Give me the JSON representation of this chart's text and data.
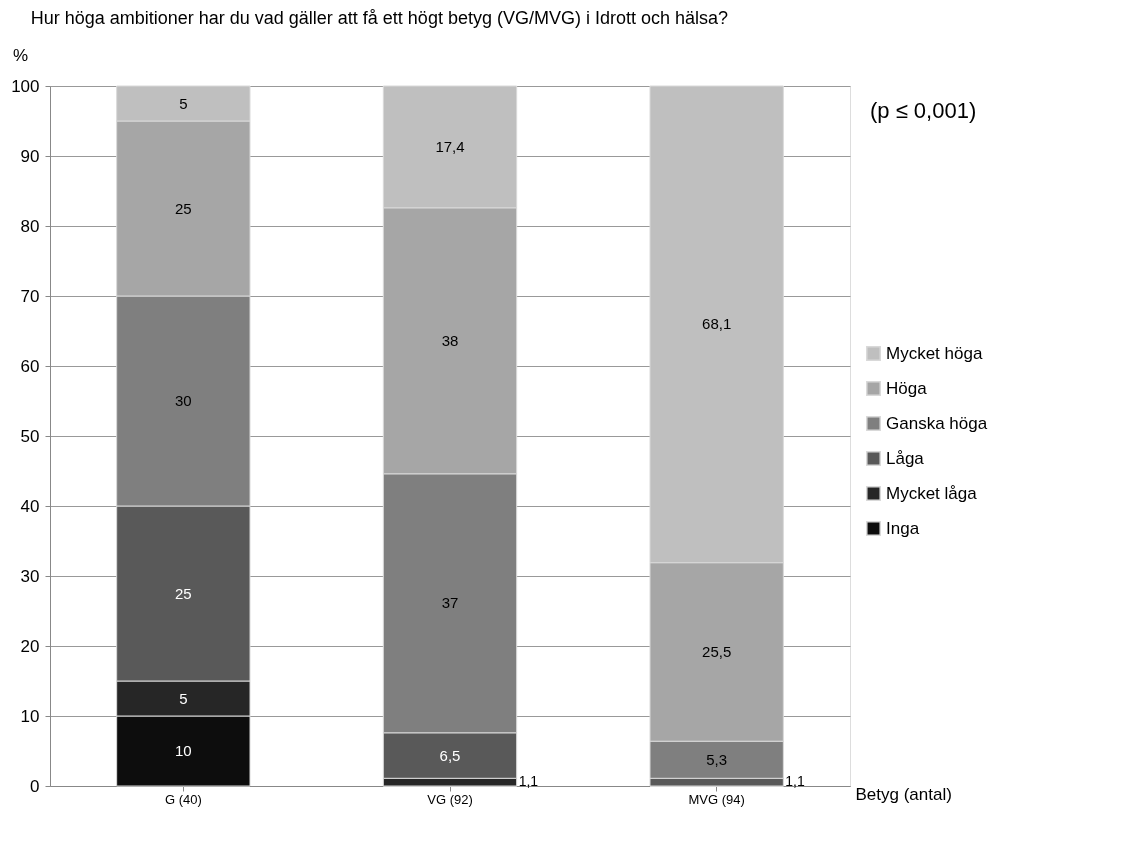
{
  "chart_data": {
    "type": "bar",
    "title": "Hur höga ambitioner har du vad gäller att få ett högt betyg (VG/MVG) i Idrott och hälsa?",
    "ylabel": "%",
    "xlabel": "Betyg (antal)",
    "annotations": [
      "(p ≤ 0,001)"
    ],
    "categories": [
      "G (40)",
      "VG (92)",
      "MVG (94)"
    ],
    "stacked": true,
    "ylim": [
      0,
      100
    ],
    "yticks": [
      0,
      10,
      20,
      30,
      40,
      50,
      60,
      70,
      80,
      90,
      100
    ],
    "grid": "y",
    "legend": "right",
    "series": [
      {
        "name": "Inga",
        "color": "#0d0d0d",
        "values": [
          10,
          0,
          0
        ],
        "value_labels": [
          "10",
          null,
          null
        ]
      },
      {
        "name": "Mycket låga",
        "color": "#262626",
        "values": [
          5,
          1.1,
          0
        ],
        "value_labels": [
          "5",
          "1,1",
          null
        ]
      },
      {
        "name": "Låga",
        "color": "#595959",
        "values": [
          25,
          6.5,
          1.1
        ],
        "value_labels": [
          "25",
          "6,5",
          "1,1"
        ]
      },
      {
        "name": "Ganska höga",
        "color": "#7f7f7f",
        "values": [
          30,
          37,
          5.3
        ],
        "value_labels": [
          "30",
          "37",
          "5,3"
        ]
      },
      {
        "name": "Höga",
        "color": "#a6a6a6",
        "values": [
          25,
          38,
          25.5
        ],
        "value_labels": [
          "25",
          "38",
          "25,5"
        ]
      },
      {
        "name": "Mycket höga",
        "color": "#bfbfbf",
        "values": [
          5,
          17.4,
          68.1
        ],
        "value_labels": [
          "5",
          "17,4",
          "68,1"
        ]
      }
    ]
  }
}
